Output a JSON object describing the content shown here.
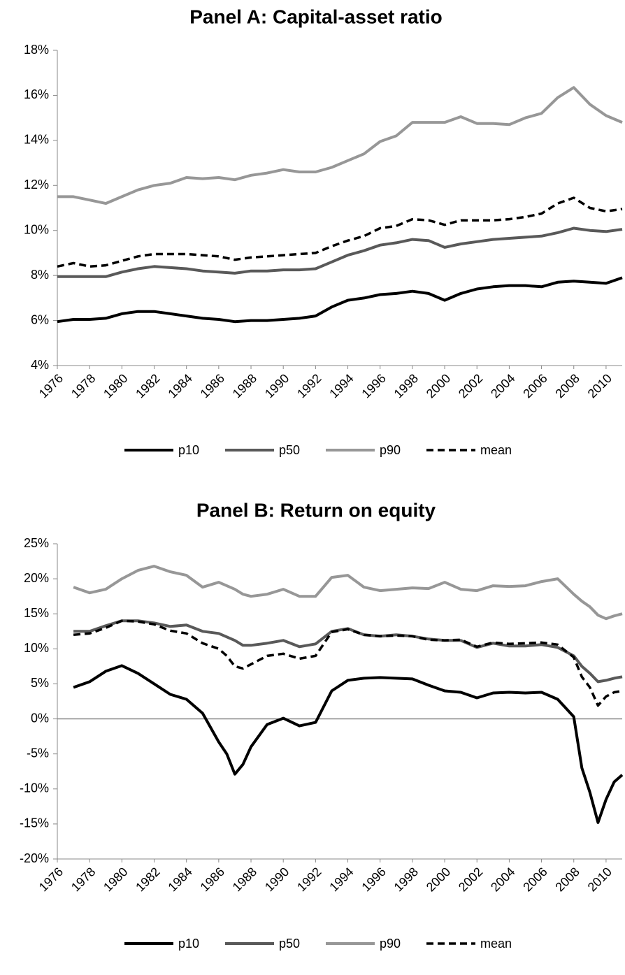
{
  "chart_data": [
    {
      "type": "line",
      "title": "Panel A: Capital-asset ratio",
      "x": [
        1976,
        1977,
        1978,
        1979,
        1980,
        1981,
        1982,
        1983,
        1984,
        1985,
        1986,
        1987,
        1988,
        1989,
        1990,
        1991,
        1992,
        1993,
        1994,
        1995,
        1996,
        1997,
        1998,
        1999,
        2000,
        2001,
        2002,
        2003,
        2004,
        2005,
        2006,
        2007,
        2008,
        2009,
        2010,
        2011
      ],
      "series": [
        {
          "name": "p10",
          "color": "#000000",
          "dashed": false,
          "values": [
            5.95,
            6.05,
            6.05,
            6.1,
            6.3,
            6.4,
            6.4,
            6.3,
            6.2,
            6.1,
            6.05,
            5.95,
            6.0,
            6.0,
            6.05,
            6.1,
            6.2,
            6.6,
            6.9,
            7.0,
            7.15,
            7.2,
            7.3,
            7.2,
            6.9,
            7.2,
            7.4,
            7.5,
            7.55,
            7.55,
            7.5,
            7.7,
            7.75,
            7.7,
            7.65,
            7.9
          ]
        },
        {
          "name": "p50",
          "color": "#595959",
          "dashed": false,
          "values": [
            7.95,
            7.95,
            7.95,
            7.95,
            8.15,
            8.3,
            8.4,
            8.35,
            8.3,
            8.2,
            8.15,
            8.1,
            8.2,
            8.2,
            8.25,
            8.25,
            8.3,
            8.6,
            8.9,
            9.1,
            9.35,
            9.45,
            9.6,
            9.55,
            9.25,
            9.4,
            9.5,
            9.6,
            9.65,
            9.7,
            9.75,
            9.9,
            10.1,
            10.0,
            9.95,
            10.05
          ]
        },
        {
          "name": "p90",
          "color": "#979797",
          "dashed": false,
          "values": [
            11.5,
            11.5,
            11.35,
            11.2,
            11.5,
            11.8,
            12.0,
            12.1,
            12.35,
            12.3,
            12.35,
            12.25,
            12.45,
            12.55,
            12.7,
            12.6,
            12.6,
            12.8,
            13.1,
            13.4,
            13.95,
            14.2,
            14.8,
            14.8,
            14.8,
            15.05,
            14.75,
            14.75,
            14.7,
            15.0,
            15.2,
            15.9,
            16.35,
            15.6,
            15.1,
            14.8
          ]
        },
        {
          "name": "mean",
          "color": "#000000",
          "dashed": true,
          "values": [
            8.4,
            8.55,
            8.4,
            8.45,
            8.65,
            8.85,
            8.95,
            8.95,
            8.95,
            8.9,
            8.85,
            8.7,
            8.8,
            8.85,
            8.9,
            8.95,
            9.0,
            9.3,
            9.55,
            9.75,
            10.1,
            10.2,
            10.5,
            10.45,
            10.25,
            10.45,
            10.45,
            10.45,
            10.5,
            10.6,
            10.75,
            11.2,
            11.45,
            11.0,
            10.85,
            10.95
          ]
        }
      ],
      "xlim": [
        1976,
        2011
      ],
      "xticks": [
        1976,
        1978,
        1980,
        1982,
        1984,
        1986,
        1988,
        1990,
        1992,
        1994,
        1996,
        1998,
        2000,
        2002,
        2004,
        2006,
        2008,
        2010
      ],
      "ylim": [
        4,
        18
      ],
      "yticks": [
        {
          "value": 4,
          "label": "4%"
        },
        {
          "value": 6,
          "label": "6%"
        },
        {
          "value": 8,
          "label": "8%"
        },
        {
          "value": 10,
          "label": "10%"
        },
        {
          "value": 12,
          "label": "12%"
        },
        {
          "value": 14,
          "label": "14%"
        },
        {
          "value": 16,
          "label": "16%"
        },
        {
          "value": 18,
          "label": "18%"
        }
      ],
      "zero_line": false,
      "legend": "bottom"
    },
    {
      "type": "line",
      "title": "Panel B: Return on equity",
      "x": [
        1977,
        1978,
        1979,
        1980,
        1981,
        1982,
        1983,
        1984,
        1985,
        1986,
        1986.5,
        1987,
        1987.5,
        1988,
        1989,
        1990,
        1991,
        1992,
        1993,
        1994,
        1995,
        1996,
        1997,
        1998,
        1999,
        2000,
        2001,
        2002,
        2003,
        2004,
        2005,
        2006,
        2007,
        2008,
        2008.5,
        2009,
        2009.5,
        2010,
        2010.5,
        2011
      ],
      "series": [
        {
          "name": "p10",
          "color": "#000000",
          "dashed": false,
          "values": [
            4.5,
            5.3,
            6.8,
            7.6,
            6.5,
            5.0,
            3.5,
            2.8,
            0.8,
            -3.3,
            -5.0,
            -7.9,
            -6.5,
            -4.0,
            -0.8,
            0.1,
            -1.0,
            -0.5,
            4.0,
            5.5,
            5.8,
            5.9,
            5.8,
            5.7,
            4.8,
            4.0,
            3.8,
            3.0,
            3.7,
            3.8,
            3.7,
            3.8,
            2.8,
            0.3,
            -7.0,
            -10.5,
            -14.8,
            -11.5,
            -9.0,
            -8.0
          ]
        },
        {
          "name": "p50",
          "color": "#595959",
          "dashed": false,
          "values": [
            12.5,
            12.5,
            13.3,
            14.0,
            14.0,
            13.7,
            13.2,
            13.4,
            12.5,
            12.2,
            11.7,
            11.2,
            10.5,
            10.5,
            10.8,
            11.2,
            10.3,
            10.7,
            12.5,
            12.9,
            12.0,
            11.8,
            12.0,
            11.8,
            11.4,
            11.2,
            11.2,
            10.2,
            10.8,
            10.4,
            10.4,
            10.6,
            10.2,
            9.0,
            7.5,
            6.5,
            5.3,
            5.5,
            5.8,
            6.0
          ]
        },
        {
          "name": "p90",
          "color": "#979797",
          "dashed": false,
          "values": [
            18.8,
            18.0,
            18.5,
            20.0,
            21.2,
            21.8,
            21.0,
            20.5,
            18.8,
            19.5,
            19.0,
            18.5,
            17.8,
            17.5,
            17.8,
            18.5,
            17.5,
            17.5,
            20.2,
            20.5,
            18.8,
            18.3,
            18.5,
            18.7,
            18.6,
            19.5,
            18.5,
            18.3,
            19.0,
            18.9,
            19.0,
            19.6,
            20.0,
            17.8,
            16.8,
            16.0,
            14.8,
            14.3,
            14.7,
            15.0
          ]
        },
        {
          "name": "mean",
          "color": "#000000",
          "dashed": true,
          "values": [
            12.0,
            12.2,
            13.0,
            14.0,
            13.9,
            13.5,
            12.6,
            12.2,
            10.8,
            10.0,
            9.0,
            7.5,
            7.2,
            7.8,
            9.0,
            9.3,
            8.6,
            9.0,
            12.4,
            12.8,
            12.0,
            11.8,
            11.9,
            11.8,
            11.3,
            11.2,
            11.3,
            10.3,
            10.9,
            10.7,
            10.8,
            10.9,
            10.6,
            8.8,
            6.0,
            4.5,
            1.9,
            3.2,
            3.8,
            4.0
          ]
        }
      ],
      "xlim": [
        1976,
        2011
      ],
      "xticks": [
        1976,
        1978,
        1980,
        1982,
        1984,
        1986,
        1988,
        1990,
        1992,
        1994,
        1996,
        1998,
        2000,
        2002,
        2004,
        2006,
        2008,
        2010
      ],
      "ylim": [
        -20,
        25
      ],
      "yticks": [
        {
          "value": -20,
          "label": "-20%"
        },
        {
          "value": -15,
          "label": "-15%"
        },
        {
          "value": -10,
          "label": "-10%"
        },
        {
          "value": -5,
          "label": "-5%"
        },
        {
          "value": 0,
          "label": "0%"
        },
        {
          "value": 5,
          "label": "5%"
        },
        {
          "value": 10,
          "label": "10%"
        },
        {
          "value": 15,
          "label": "15%"
        },
        {
          "value": 20,
          "label": "20%"
        },
        {
          "value": 25,
          "label": "25%"
        }
      ],
      "zero_line": true,
      "legend": "bottom"
    }
  ]
}
